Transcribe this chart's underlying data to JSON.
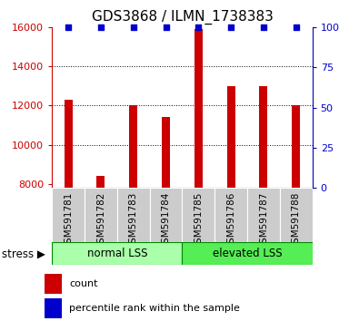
{
  "title": "GDS3868 / ILMN_1738383",
  "categories": [
    "GSM591781",
    "GSM591782",
    "GSM591783",
    "GSM591784",
    "GSM591785",
    "GSM591786",
    "GSM591787",
    "GSM591788"
  ],
  "bar_values": [
    12300,
    8400,
    12000,
    11400,
    15900,
    13000,
    13000,
    12000
  ],
  "percentile_values": [
    100,
    100,
    100,
    100,
    100,
    100,
    100,
    100
  ],
  "bar_color": "#cc0000",
  "dot_color": "#0000cc",
  "ylim_left": [
    7800,
    16000
  ],
  "ylim_right": [
    0,
    100
  ],
  "yticks_left": [
    8000,
    10000,
    12000,
    14000,
    16000
  ],
  "yticks_right": [
    0,
    25,
    50,
    75,
    100
  ],
  "groups": [
    {
      "label": "normal LSS",
      "indices": [
        0,
        1,
        2,
        3
      ],
      "color": "#aaffaa"
    },
    {
      "label": "elevated LSS",
      "indices": [
        4,
        5,
        6,
        7
      ],
      "color": "#55ee55"
    }
  ],
  "group_bar_bg_color": "#cccccc",
  "stress_label": "stress ▶",
  "legend_items": [
    {
      "label": "count",
      "color": "#cc0000"
    },
    {
      "label": "percentile rank within the sample",
      "color": "#0000cc"
    }
  ],
  "title_fontsize": 11,
  "axis_left_color": "#cc0000",
  "axis_right_color": "#0000cc",
  "bar_width": 0.25
}
